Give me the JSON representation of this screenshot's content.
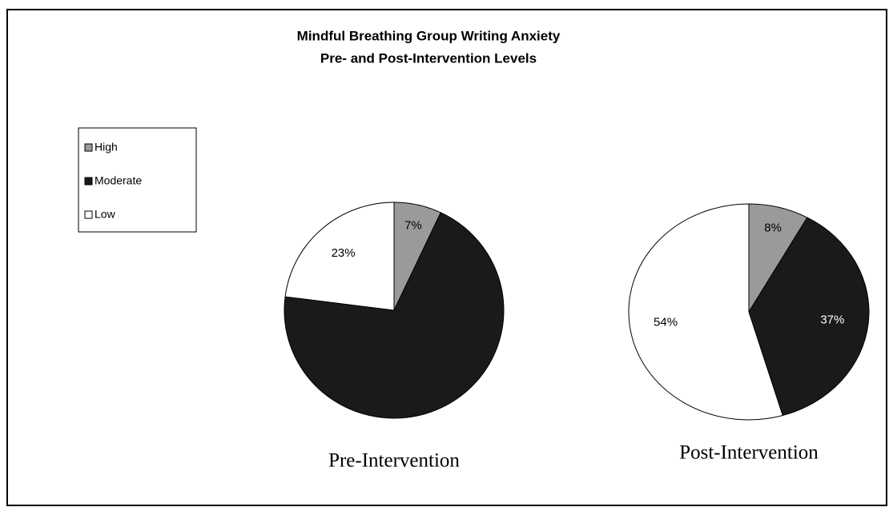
{
  "title": [
    "Mindful Breathing Group Writing Anxiety",
    "Pre- and Post-Intervention Levels"
  ],
  "chart_data": [
    {
      "type": "pie",
      "label": "Pre-Intervention",
      "categories": [
        "High",
        "Moderate",
        "Low"
      ],
      "values": [
        7,
        70,
        23
      ],
      "value_labels": [
        "7%",
        null,
        "23%"
      ],
      "colors": [
        "#9a9a9a",
        "#1a1a1a",
        "#ffffff"
      ]
    },
    {
      "type": "pie",
      "label": "Post-Intervention",
      "categories": [
        "High",
        "Moderate",
        "Low"
      ],
      "values": [
        8,
        37,
        54
      ],
      "value_labels": [
        "8%",
        "37%",
        "54%"
      ],
      "colors": [
        "#9a9a9a",
        "#1a1a1a",
        "#ffffff"
      ]
    }
  ]
}
